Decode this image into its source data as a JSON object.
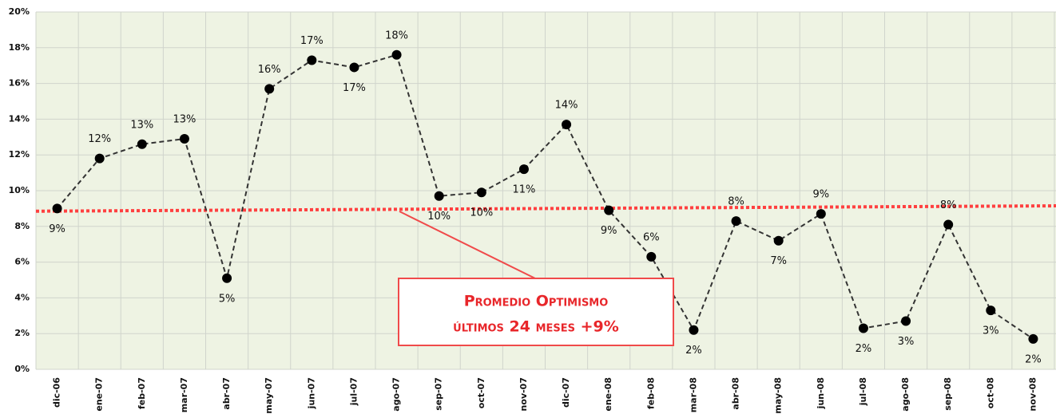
{
  "chart_data": {
    "type": "line",
    "categories": [
      "dic-06",
      "ene-07",
      "feb-07",
      "mar-07",
      "abr-07",
      "may-07",
      "jun-07",
      "jul-07",
      "ago-07",
      "sep-07",
      "oct-07",
      "nov-07",
      "dic-07",
      "ene-08",
      "feb-08",
      "mar-08",
      "abr-08",
      "may-08",
      "jun-08",
      "jul-08",
      "ago-08",
      "sep-08",
      "oct-08",
      "nov-08"
    ],
    "series": [
      {
        "color": "#000000",
        "values": [
          9.0,
          11.8,
          12.6,
          12.9,
          5.1,
          15.7,
          17.3,
          16.9,
          17.6,
          9.7,
          9.9,
          11.2,
          13.7,
          8.9,
          6.3,
          2.2,
          8.3,
          7.2,
          8.7,
          2.3,
          2.7,
          8.1,
          3.3,
          1.7
        ],
        "value_labels": [
          "9%",
          "12%",
          "13%",
          "13%",
          "5%",
          "16%",
          "17%",
          "17%",
          "18%",
          "10%",
          "10%",
          "11%",
          "14%",
          "9%",
          "6%",
          "2%",
          "8%",
          "7%",
          "9%",
          "2%",
          "3%",
          "8%",
          "3%",
          "2%"
        ]
      }
    ],
    "trend_line": {
      "start": 8.85,
      "end": 9.15,
      "color": "#ff4040"
    },
    "ylim": [
      0,
      20
    ],
    "yticks": [
      {
        "value": 0,
        "label": "0%"
      },
      {
        "value": 2,
        "label": "2%"
      },
      {
        "value": 4,
        "label": "4%"
      },
      {
        "value": 6,
        "label": "6%"
      },
      {
        "value": 8,
        "label": "8%"
      },
      {
        "value": 10,
        "label": "10%"
      },
      {
        "value": 12,
        "label": "12%"
      },
      {
        "value": 14,
        "label": "14%"
      },
      {
        "value": 16,
        "label": "16%"
      },
      {
        "value": 18,
        "label": "18%"
      },
      {
        "value": 20,
        "label": "20%"
      }
    ],
    "grid": true,
    "annotation": {
      "lines": [
        "Promedio Optimismo",
        "últimos 24 meses +9%"
      ]
    }
  }
}
